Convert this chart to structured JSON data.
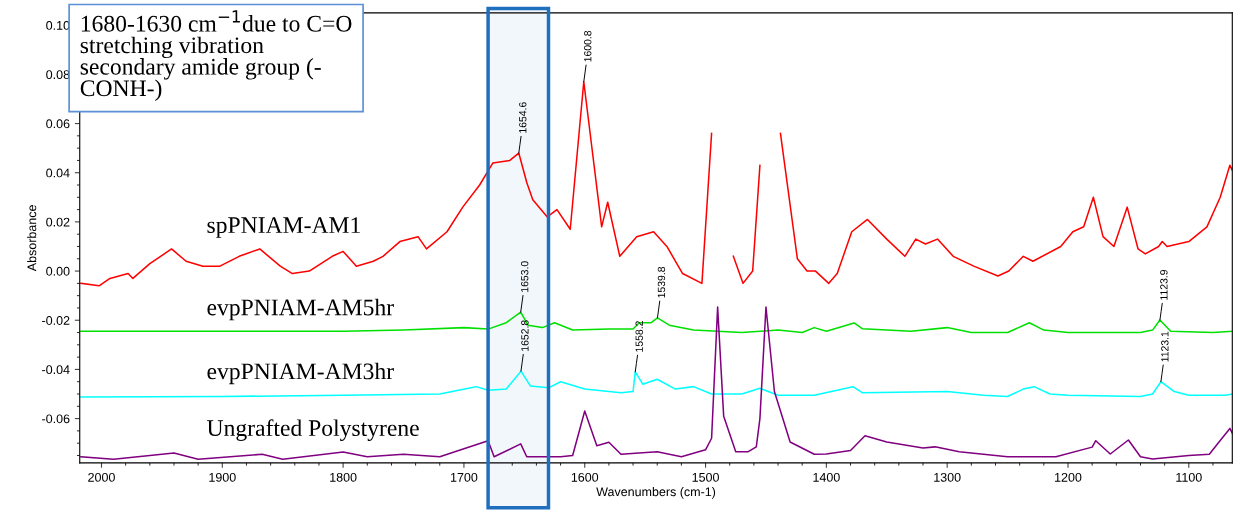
{
  "chart_data": {
    "type": "line",
    "xlabel": "Wavenumbers (cm-1)",
    "ylabel": "Absorbance",
    "xlim": [
      2018,
      1064
    ],
    "ylim": [
      -0.078,
      0.105
    ],
    "xticks": [
      2000,
      1900,
      1800,
      1700,
      1600,
      1500,
      1400,
      1300,
      1200,
      1100
    ],
    "yticks": [
      {
        "value": -0.06,
        "label": "-0.06"
      },
      {
        "value": -0.04,
        "label": "-0.04"
      },
      {
        "value": -0.02,
        "label": "-0.02"
      },
      {
        "value": 0,
        "label": "0.00"
      },
      {
        "value": 0.02,
        "label": "0.02"
      },
      {
        "value": 0.04,
        "label": "0.04"
      },
      {
        "value": 0.06,
        "label": "0.06"
      },
      {
        "value": 0.08,
        "label": "0.08"
      },
      {
        "value": 0.1,
        "label": "0.10"
      }
    ],
    "grid": false,
    "legend": false,
    "marker": "none",
    "line_style": "solid",
    "series": [
      {
        "name": "spPNIAM-AM1",
        "color": "#ff0000",
        "x": [
          2017,
          2002,
          1993,
          1978,
          1974,
          1960,
          1942,
          1930,
          1916,
          1902,
          1886,
          1869,
          1852,
          1842,
          1828,
          1809,
          1800,
          1789,
          1775,
          1767,
          1753,
          1738,
          1731,
          1714,
          1701,
          1687,
          1676,
          1662,
          1654.6,
          1648,
          1643,
          1631,
          1623,
          1612,
          1600.8,
          1586,
          1581,
          1571,
          1557,
          1543,
          1532,
          1519,
          1503,
          1495,
          1493,
          1486,
          1477,
          1469,
          1461,
          1455,
          1453,
          1442,
          1438,
          1424,
          1416,
          1409,
          1398,
          1391,
          1379,
          1366,
          1350,
          1335,
          1326,
          1318,
          1308,
          1295,
          1278,
          1258,
          1249,
          1237,
          1229,
          1206,
          1196,
          1187,
          1179,
          1171,
          1162,
          1151,
          1142,
          1136,
          1125,
          1122,
          1118,
          1100,
          1085,
          1074,
          1066,
          1064
        ],
        "values": [
          -0.005,
          -0.006,
          -0.003,
          -0.001,
          -0.003,
          0.003,
          0.009,
          0.004,
          0.002,
          0.002,
          0.006,
          0.009,
          0.002,
          -0.001,
          0.0,
          0.006,
          0.008,
          0.002,
          0.004,
          0.006,
          0.012,
          0.014,
          0.009,
          0.016,
          0.026,
          0.035,
          0.044,
          0.045,
          0.048,
          0.036,
          0.029,
          0.022,
          0.025,
          0.017,
          0.077,
          0.018,
          0.028,
          0.006,
          0.014,
          0.016,
          0.01,
          -0.001,
          -0.005,
          0.056,
          null,
          null,
          0.006,
          -0.005,
          0.0,
          0.043,
          null,
          null,
          0.056,
          0.005,
          0.0,
          0.0,
          -0.005,
          -0.001,
          0.016,
          0.021,
          0.013,
          0.006,
          0.013,
          0.011,
          0.013,
          0.006,
          0.002,
          -0.002,
          0.0,
          0.006,
          0.004,
          0.01,
          0.016,
          0.018,
          0.03,
          0.014,
          0.01,
          0.026,
          0.009,
          0.007,
          0.01,
          0.012,
          0.01,
          0.012,
          0.018,
          0.03,
          0.043,
          0.041
        ]
      },
      {
        "name": "evpPNIAM-AM5hr",
        "color": "#00e000",
        "x": [
          2017,
          1900,
          1800,
          1750,
          1700,
          1680,
          1665,
          1653,
          1647,
          1635,
          1625,
          1610,
          1580,
          1560,
          1555,
          1545,
          1539.8,
          1530,
          1510,
          1490,
          1470,
          1440,
          1420,
          1410,
          1400,
          1377,
          1370,
          1330,
          1300,
          1280,
          1250,
          1232,
          1220,
          1200,
          1140,
          1130,
          1123.9,
          1115,
          1080,
          1064
        ],
        "values": [
          -0.0245,
          -0.0245,
          -0.0245,
          -0.024,
          -0.023,
          -0.0236,
          -0.021,
          -0.0167,
          -0.022,
          -0.023,
          -0.021,
          -0.024,
          -0.0236,
          -0.0236,
          -0.021,
          -0.021,
          -0.019,
          -0.022,
          -0.024,
          -0.0245,
          -0.025,
          -0.024,
          -0.025,
          -0.023,
          -0.0245,
          -0.0211,
          -0.0235,
          -0.0245,
          -0.023,
          -0.025,
          -0.025,
          -0.021,
          -0.024,
          -0.025,
          -0.025,
          -0.024,
          -0.0199,
          -0.0245,
          -0.025,
          -0.0245
        ]
      },
      {
        "name": "evpPNIAM-AM3hr",
        "color": "#00ffff",
        "x": [
          2017,
          1900,
          1800,
          1720,
          1690,
          1680,
          1665,
          1652.8,
          1645,
          1630,
          1620,
          1600,
          1570,
          1560,
          1558.2,
          1552,
          1540,
          1525,
          1510,
          1495,
          1470,
          1455,
          1440,
          1410,
          1378,
          1370,
          1300,
          1270,
          1250,
          1237,
          1228,
          1215,
          1200,
          1140,
          1130,
          1123.1,
          1112,
          1100,
          1070,
          1064
        ],
        "values": [
          -0.0512,
          -0.051,
          -0.0505,
          -0.05,
          -0.047,
          -0.0485,
          -0.048,
          -0.0407,
          -0.0467,
          -0.0475,
          -0.045,
          -0.048,
          -0.0495,
          -0.049,
          -0.041,
          -0.046,
          -0.044,
          -0.048,
          -0.047,
          -0.05,
          -0.05,
          -0.0477,
          -0.0505,
          -0.0505,
          -0.047,
          -0.0495,
          -0.049,
          -0.0505,
          -0.051,
          -0.048,
          -0.047,
          -0.05,
          -0.0505,
          -0.051,
          -0.05,
          -0.045,
          -0.049,
          -0.0505,
          -0.0505,
          -0.05
        ]
      },
      {
        "name": "Ungrafted Polystyrene",
        "color": "#800080",
        "x": [
          2017,
          1990,
          1940,
          1920,
          1867,
          1850,
          1800,
          1780,
          1750,
          1720,
          1680,
          1675,
          1653,
          1648,
          1620,
          1610,
          1600,
          1590,
          1580,
          1570,
          1540,
          1520,
          1500,
          1495,
          1490,
          1485,
          1475,
          1465,
          1458,
          1455,
          1450,
          1443,
          1430,
          1410,
          1400,
          1380,
          1368,
          1350,
          1320,
          1310,
          1290,
          1250,
          1210,
          1180,
          1177,
          1165,
          1150,
          1140,
          1130,
          1100,
          1083,
          1075,
          1066,
          1064
        ],
        "values": [
          -0.0755,
          -0.0765,
          -0.074,
          -0.0765,
          -0.0745,
          -0.0765,
          -0.0736,
          -0.0755,
          -0.0745,
          -0.0755,
          -0.069,
          -0.0755,
          -0.0703,
          -0.0755,
          -0.0755,
          -0.075,
          -0.0569,
          -0.071,
          -0.0696,
          -0.0745,
          -0.0735,
          -0.0755,
          -0.0727,
          -0.068,
          -0.0146,
          -0.059,
          -0.0735,
          -0.0735,
          -0.0715,
          -0.06,
          -0.0146,
          -0.049,
          -0.0695,
          -0.0745,
          -0.0744,
          -0.073,
          -0.067,
          -0.0695,
          -0.072,
          -0.0715,
          -0.0735,
          -0.0755,
          -0.0755,
          -0.0716,
          -0.069,
          -0.0744,
          -0.0687,
          -0.0755,
          -0.0764,
          -0.075,
          -0.0745,
          -0.0695,
          -0.064,
          -0.066
        ]
      }
    ],
    "bands": [
      {
        "axis": "x",
        "from": 1680,
        "to": 1630,
        "color": "#1f6fbf"
      }
    ],
    "annotations": [
      "1680-1630 cm$^{−1}$due to C=O\nstretching vibration\nsecondary amide group (-\nCONH-)",
      {
        "text": "1654.6",
        "x": 1654.6,
        "y": 0.048
      },
      {
        "text": "1600.8",
        "x": 1600.8,
        "y": 0.077
      },
      {
        "text": "1653.0",
        "x": 1653.0,
        "y": -0.0167
      },
      {
        "text": "1539.8",
        "x": 1539.8,
        "y": -0.019
      },
      {
        "text": "1123.9",
        "x": 1123.9,
        "y": -0.0199
      },
      {
        "text": "1652.8",
        "x": 1652.8,
        "y": -0.0407
      },
      {
        "text": "1558.2",
        "x": 1558.2,
        "y": -0.041
      },
      {
        "text": "1123.1",
        "x": 1123.1,
        "y": -0.045
      }
    ]
  }
}
